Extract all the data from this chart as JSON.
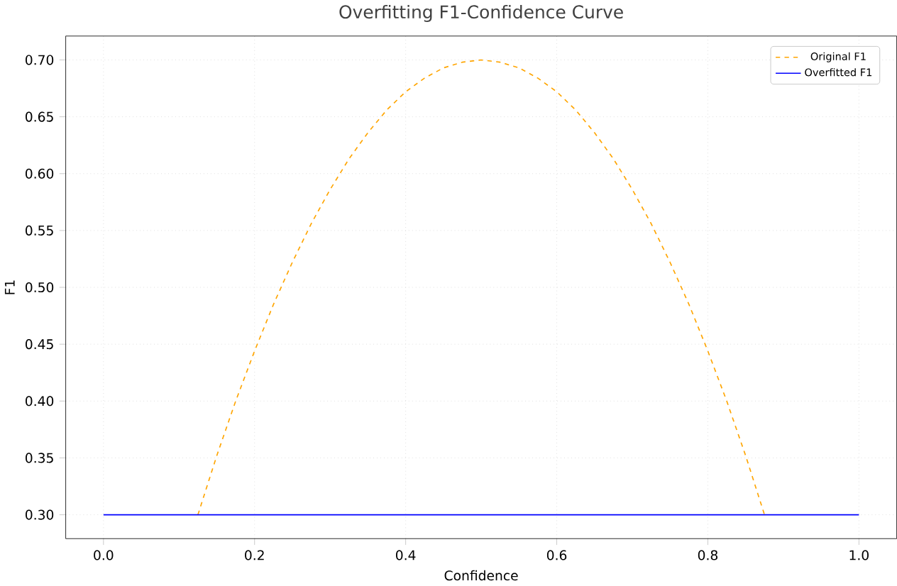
{
  "chart_data": {
    "type": "line",
    "title": "Overfitting F1-Confidence Curve",
    "xlabel": "Confidence",
    "ylabel": "F1",
    "xlim": [
      -0.05,
      1.05
    ],
    "ylim": [
      0.279,
      0.721
    ],
    "xticks": [
      {
        "value": 0,
        "label": "0.0"
      },
      {
        "value": 0.2,
        "label": "0.2"
      },
      {
        "value": 0.4,
        "label": "0.4"
      },
      {
        "value": 0.6,
        "label": "0.6"
      },
      {
        "value": 0.8,
        "label": "0.8"
      },
      {
        "value": 1,
        "label": "1.0"
      }
    ],
    "yticks": [
      {
        "value": 0.3,
        "label": "0.30"
      },
      {
        "value": 0.35,
        "label": "0.35"
      },
      {
        "value": 0.4,
        "label": "0.40"
      },
      {
        "value": 0.45,
        "label": "0.45"
      },
      {
        "value": 0.5,
        "label": "0.50"
      },
      {
        "value": 0.55,
        "label": "0.55"
      },
      {
        "value": 0.6,
        "label": "0.60"
      },
      {
        "value": 0.65,
        "label": "0.65"
      },
      {
        "value": 0.7,
        "label": "0.70"
      }
    ],
    "grid": true,
    "legend": "top right",
    "series": [
      {
        "name": "Original F1",
        "color": "#ffa500",
        "line_style": "dashed",
        "x": [
          0.125,
          0.15,
          0.175,
          0.2,
          0.225,
          0.25,
          0.275,
          0.3,
          0.325,
          0.35,
          0.375,
          0.4,
          0.425,
          0.45,
          0.475,
          0.5,
          0.525,
          0.55,
          0.575,
          0.6,
          0.625,
          0.65,
          0.675,
          0.7,
          0.725,
          0.75,
          0.775,
          0.8,
          0.825,
          0.85,
          0.875
        ],
        "values": [
          0.3,
          0.352,
          0.4,
          0.444,
          0.485,
          0.522,
          0.556,
          0.586,
          0.613,
          0.636,
          0.656,
          0.672,
          0.684,
          0.693,
          0.698,
          0.7,
          0.698,
          0.693,
          0.684,
          0.672,
          0.656,
          0.636,
          0.613,
          0.586,
          0.556,
          0.522,
          0.485,
          0.444,
          0.4,
          0.352,
          0.3
        ]
      },
      {
        "name": "Overfitted F1",
        "color": "#0000ff",
        "line_style": "solid",
        "x": [
          0,
          1
        ],
        "values": [
          0.3,
          0.3
        ]
      }
    ]
  }
}
